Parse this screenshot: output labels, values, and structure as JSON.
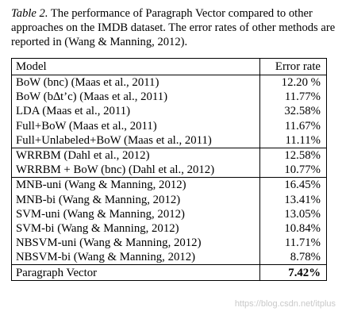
{
  "caption": {
    "label": "Table 2.",
    "text": " The performance of Paragraph Vector compared to other approaches on the IMDB dataset. The error rates of other methods are reported in (Wang & Manning, 2012)."
  },
  "table": {
    "headers": {
      "model": "Model",
      "error": "Error rate"
    },
    "groups": [
      {
        "rows": [
          {
            "model": "BoW (bnc) (Maas et al., 2011)",
            "error": "12.20 %"
          },
          {
            "model": "BoW (b∆t’c) (Maas et al., 2011)",
            "error": "11.77%"
          },
          {
            "model": "LDA (Maas et al., 2011)",
            "error": "32.58%"
          },
          {
            "model": "Full+BoW (Maas et al., 2011)",
            "error": "11.67%"
          },
          {
            "model": "Full+Unlabeled+BoW (Maas et al., 2011)",
            "error": "11.11%"
          }
        ]
      },
      {
        "rows": [
          {
            "model": "WRRBM (Dahl et al., 2012)",
            "error": "12.58%"
          },
          {
            "model": "WRRBM + BoW (bnc) (Dahl et al., 2012)",
            "error": "10.77%"
          }
        ]
      },
      {
        "rows": [
          {
            "model": "MNB-uni (Wang & Manning, 2012)",
            "error": "16.45%"
          },
          {
            "model": "MNB-bi (Wang & Manning, 2012)",
            "error": "13.41%"
          },
          {
            "model": "SVM-uni (Wang & Manning, 2012)",
            "error": "13.05%"
          },
          {
            "model": "SVM-bi (Wang & Manning, 2012)",
            "error": "10.84%"
          },
          {
            "model": "NBSVM-uni (Wang & Manning, 2012)",
            "error": "11.71%"
          },
          {
            "model": "NBSVM-bi (Wang & Manning, 2012)",
            "error": "8.78%"
          }
        ]
      },
      {
        "rows": [
          {
            "model": "Paragraph Vector",
            "error": "7.42%",
            "bold_error": true
          }
        ]
      }
    ]
  },
  "watermark": "https://blog.csdn.net/itplus"
}
